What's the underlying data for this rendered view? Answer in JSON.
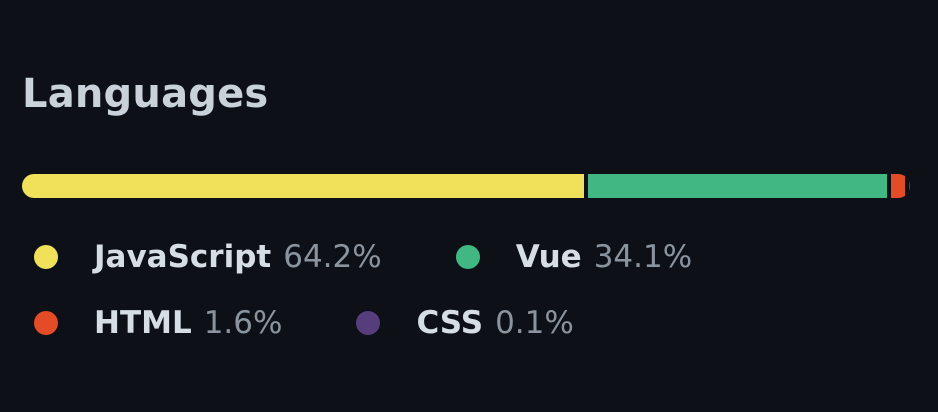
{
  "section": {
    "title": "Languages"
  },
  "languages": [
    {
      "name": "JavaScript",
      "percent_label": "64.2%",
      "percent": 64.2,
      "color": "#f1e05a"
    },
    {
      "name": "Vue",
      "percent_label": "34.1%",
      "percent": 34.1,
      "color": "#41b883"
    },
    {
      "name": "HTML",
      "percent_label": "1.6%",
      "percent": 1.6,
      "color": "#e34c26"
    },
    {
      "name": "CSS",
      "percent_label": "0.1%",
      "percent": 0.1,
      "color": "#563d7c"
    }
  ]
}
